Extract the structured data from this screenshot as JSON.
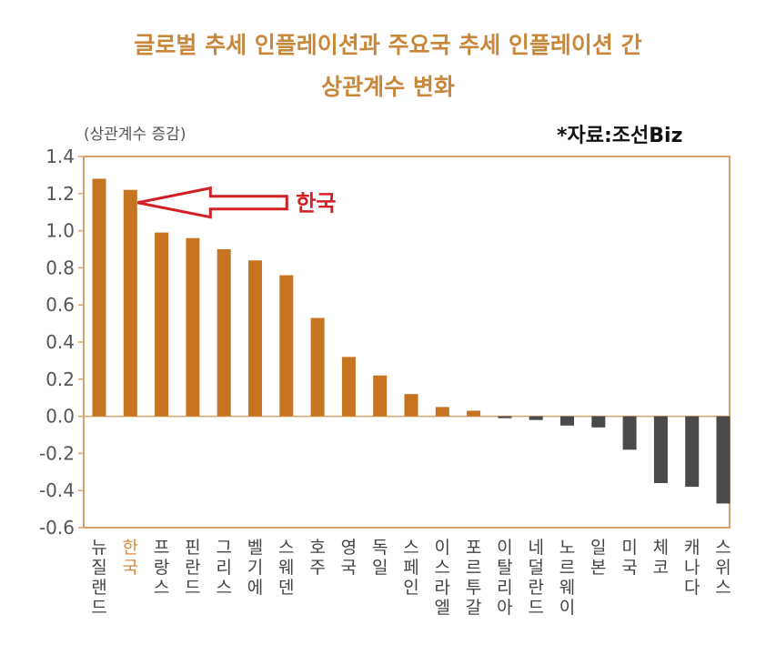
{
  "chart_data": {
    "type": "bar",
    "title_line1": "글로벌 추세 인플레이션과 주요국 추세 인플레이션 간",
    "title_line2": "상관계수 변화",
    "ylabel": "(상관계수 증감)",
    "source": "*자료:조선Biz",
    "annotation": "한국",
    "highlight_category": "한국",
    "ylim": [
      -0.6,
      1.4
    ],
    "yticks": [
      "1.4",
      "1.2",
      "1.0",
      "0.8",
      "0.6",
      "0.4",
      "0.2",
      "0.0",
      "-0.2",
      "-0.4",
      "-0.6"
    ],
    "categories": [
      "뉴질랜드",
      "한국",
      "프랑스",
      "핀란드",
      "그리스",
      "벨기에",
      "스웨덴",
      "호주",
      "영국",
      "독일",
      "스페인",
      "이스라엘",
      "포르투갈",
      "이탈리아",
      "네덜란드",
      "노르웨이",
      "일본",
      "미국",
      "체코",
      "캐나다",
      "스위스"
    ],
    "values": [
      1.28,
      1.22,
      0.99,
      0.96,
      0.9,
      0.84,
      0.76,
      0.53,
      0.32,
      0.22,
      0.12,
      0.05,
      0.03,
      -0.01,
      -0.02,
      -0.05,
      -0.06,
      -0.18,
      -0.36,
      -0.38,
      -0.47
    ],
    "colors": {
      "positive": "#c6741f",
      "negative": "#4a4a4a",
      "highlight": "#d38a3e",
      "annotation": "#d21f26",
      "frame": "#d9a26a",
      "title": "#c8873a"
    }
  }
}
